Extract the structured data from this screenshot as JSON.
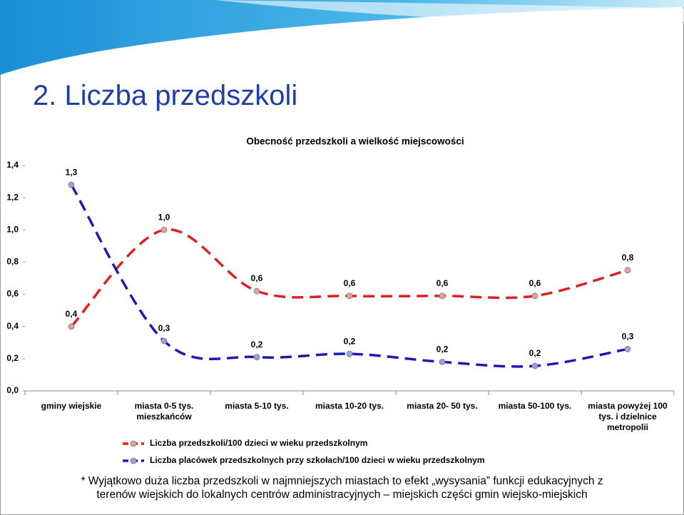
{
  "title": "2. Liczba przedszkoli",
  "footnote": [
    "* Wyjątkowo duża liczba przedszkoli w najmniejszych miastach to efekt „wysysania” funkcji edukacyjnych z",
    "terenów wiejskich do lokalnych centrów administracyjnych – miejskich części gmin wiejsko-miejskich"
  ],
  "chart_data": {
    "type": "line",
    "title": "Obecność przedszkoli a wielkość miejscowości",
    "categories": [
      "gminy wiejskie",
      "miasta 0-5 tys. mieszkańców",
      "miasta 5-10 tys.",
      "miasta 10-20 tys.",
      "miasta 20- 50 tys.",
      "miasta 50-100 tys.",
      "miasta powyżej 100 tys. i dzielnice metropolii"
    ],
    "series": [
      {
        "name": "Liczba przedszkoli/100 dzieci w wieku przedszkolnym",
        "color": "#e02020",
        "marker_color": "#e8a0a0",
        "values": [
          0.4,
          1.0,
          0.62,
          0.59,
          0.59,
          0.59,
          0.75
        ],
        "value_labels": [
          "0,4",
          "1,0",
          "0,6",
          "0,6",
          "0,6",
          "0,6",
          "0,8"
        ]
      },
      {
        "name": "Liczba placówek przedszkolnych przy szkołach/100 dzieci w wieku przedszkolnym",
        "color": "#1a1ab8",
        "marker_color": "#9aa0e0",
        "values": [
          1.28,
          0.31,
          0.21,
          0.23,
          0.18,
          0.155,
          0.26
        ],
        "value_labels": [
          "1,3",
          "0,3",
          "0,2",
          "0,2",
          "0,2",
          "0,2",
          "0,3"
        ]
      }
    ],
    "ylim": [
      0,
      1.4
    ],
    "yticks": [
      {
        "value": 0,
        "label": "0,0"
      },
      {
        "value": 0.2,
        "label": "0,2"
      },
      {
        "value": 0.4,
        "label": "0,4"
      },
      {
        "value": 0.6,
        "label": "0,6"
      },
      {
        "value": 0.8,
        "label": "0,8"
      },
      {
        "value": 1.0,
        "label": "1,0"
      },
      {
        "value": 1.2,
        "label": "1,2"
      },
      {
        "value": 1.4,
        "label": "1,4"
      }
    ]
  }
}
